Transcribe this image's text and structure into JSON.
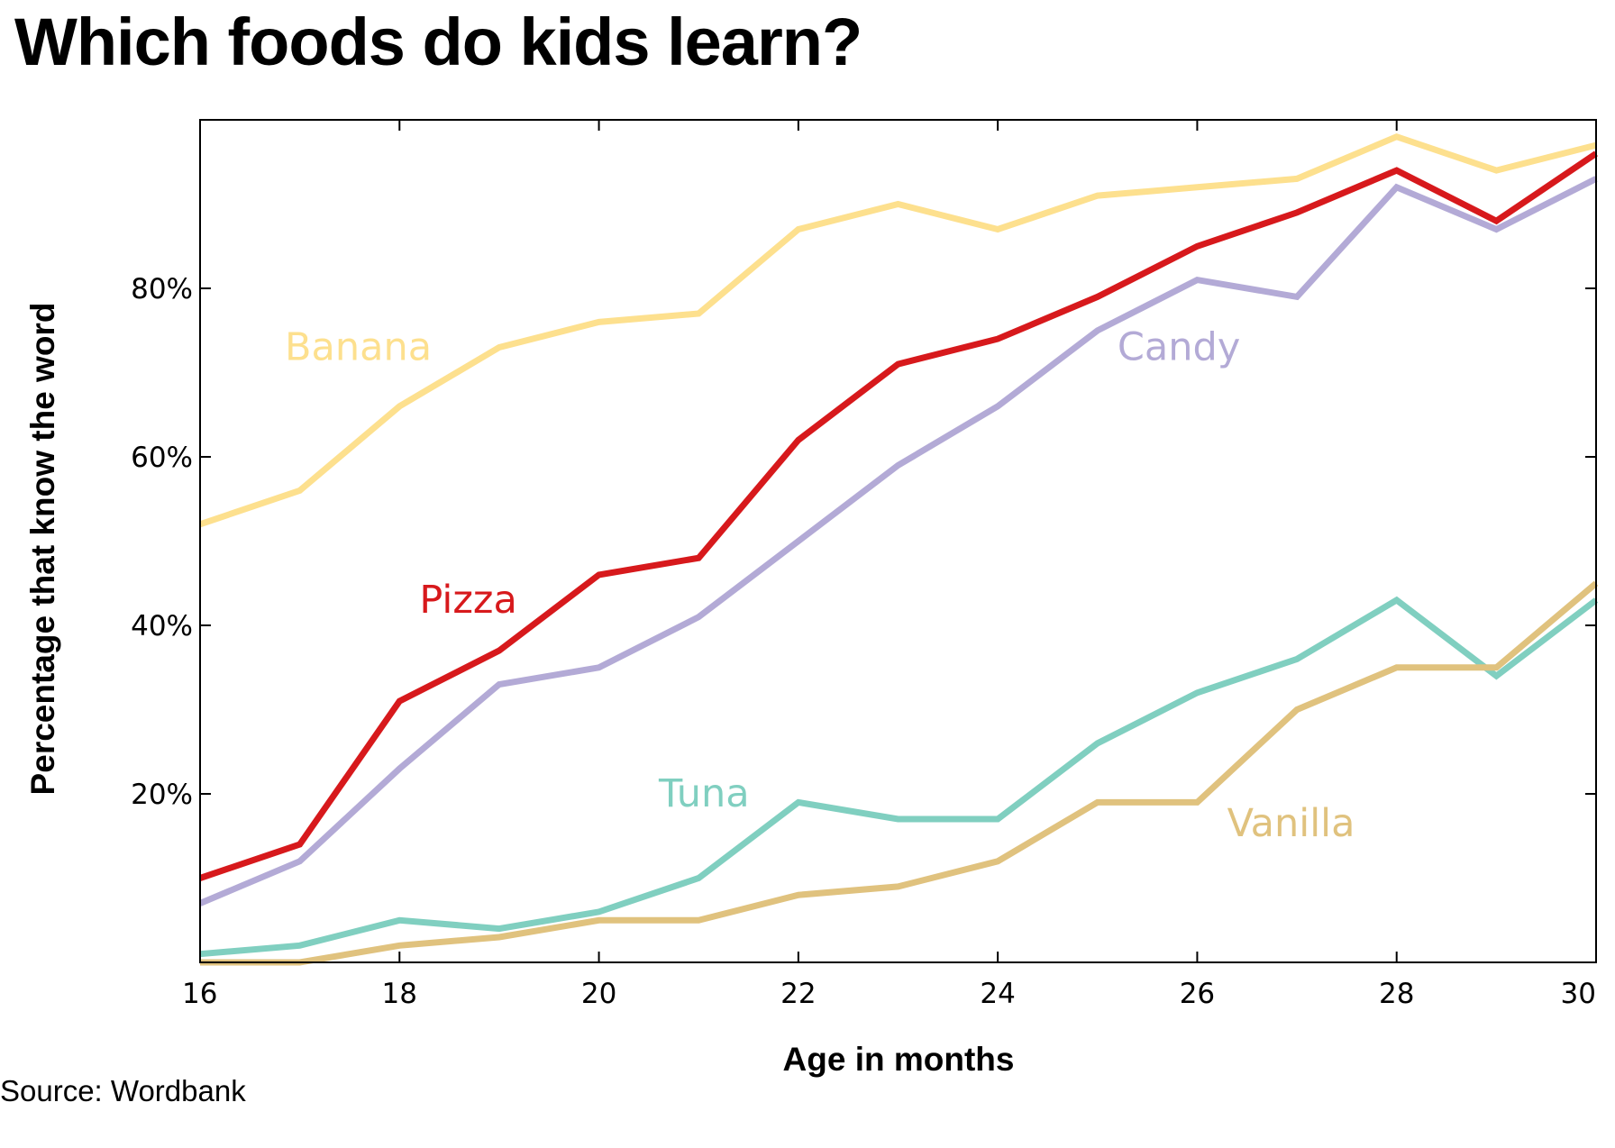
{
  "chart_data": {
    "type": "line",
    "title": "Which foods do kids learn?",
    "xlabel": "Age in months",
    "ylabel": "Percentage that know the word",
    "source": "Source: Wordbank",
    "xlim": [
      16,
      30
    ],
    "ylim": [
      0,
      100
    ],
    "xticks": [
      16,
      18,
      20,
      22,
      24,
      26,
      28,
      30
    ],
    "yticks": [
      {
        "value": 20,
        "label": "20%"
      },
      {
        "value": 40,
        "label": "40%"
      },
      {
        "value": 60,
        "label": "60%"
      },
      {
        "value": 80,
        "label": "80%"
      }
    ],
    "x": [
      16,
      17,
      18,
      19,
      20,
      21,
      22,
      23,
      24,
      25,
      26,
      27,
      28,
      29,
      30
    ],
    "series": [
      {
        "name": "Banana",
        "color": "#FDE08E",
        "values": [
          52,
          56,
          66,
          73,
          76,
          77,
          87,
          90,
          87,
          91,
          92,
          93,
          98,
          94,
          97
        ]
      },
      {
        "name": "Candy",
        "color": "#B3AAD6",
        "values": [
          7,
          12,
          23,
          33,
          35,
          41,
          50,
          59,
          66,
          75,
          81,
          79,
          92,
          87,
          93
        ]
      },
      {
        "name": "Pizza",
        "color": "#D7191C",
        "values": [
          10,
          14,
          31,
          37,
          46,
          48,
          62,
          71,
          74,
          79,
          85,
          89,
          94,
          88,
          96
        ]
      },
      {
        "name": "Tuna",
        "color": "#80CFC0",
        "values": [
          1,
          2,
          5,
          4,
          6,
          10,
          19,
          17,
          17,
          26,
          32,
          36,
          43,
          34,
          43
        ]
      },
      {
        "name": "Vanilla",
        "color": "#E0C27E",
        "values": [
          0,
          0,
          2,
          3,
          5,
          5,
          8,
          9,
          12,
          19,
          19,
          30,
          35,
          35,
          45
        ]
      }
    ]
  }
}
